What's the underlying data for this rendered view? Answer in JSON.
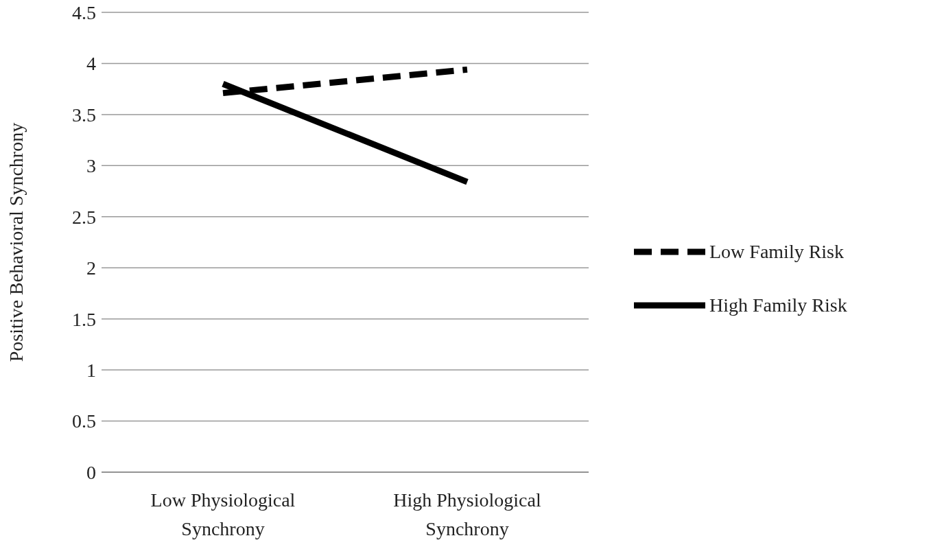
{
  "chart_data": {
    "type": "line",
    "ylabel": "Positive Behavioral Synchrony",
    "categories": [
      "Low Physiological Synchrony",
      "High Physiological Synchrony"
    ],
    "series": [
      {
        "name": "Low Family Risk",
        "color": "#000000",
        "line_style": "dashed",
        "values": [
          3.71,
          3.94
        ]
      },
      {
        "name": "High Family Risk",
        "color": "#000000",
        "line_style": "solid",
        "values": [
          3.8,
          2.84
        ]
      }
    ],
    "ylim": [
      0,
      4.5
    ],
    "yticks": [
      0,
      0.5,
      1,
      1.5,
      2,
      2.5,
      3,
      3.5,
      4,
      4.5
    ],
    "grid": "y",
    "legend": "right"
  }
}
